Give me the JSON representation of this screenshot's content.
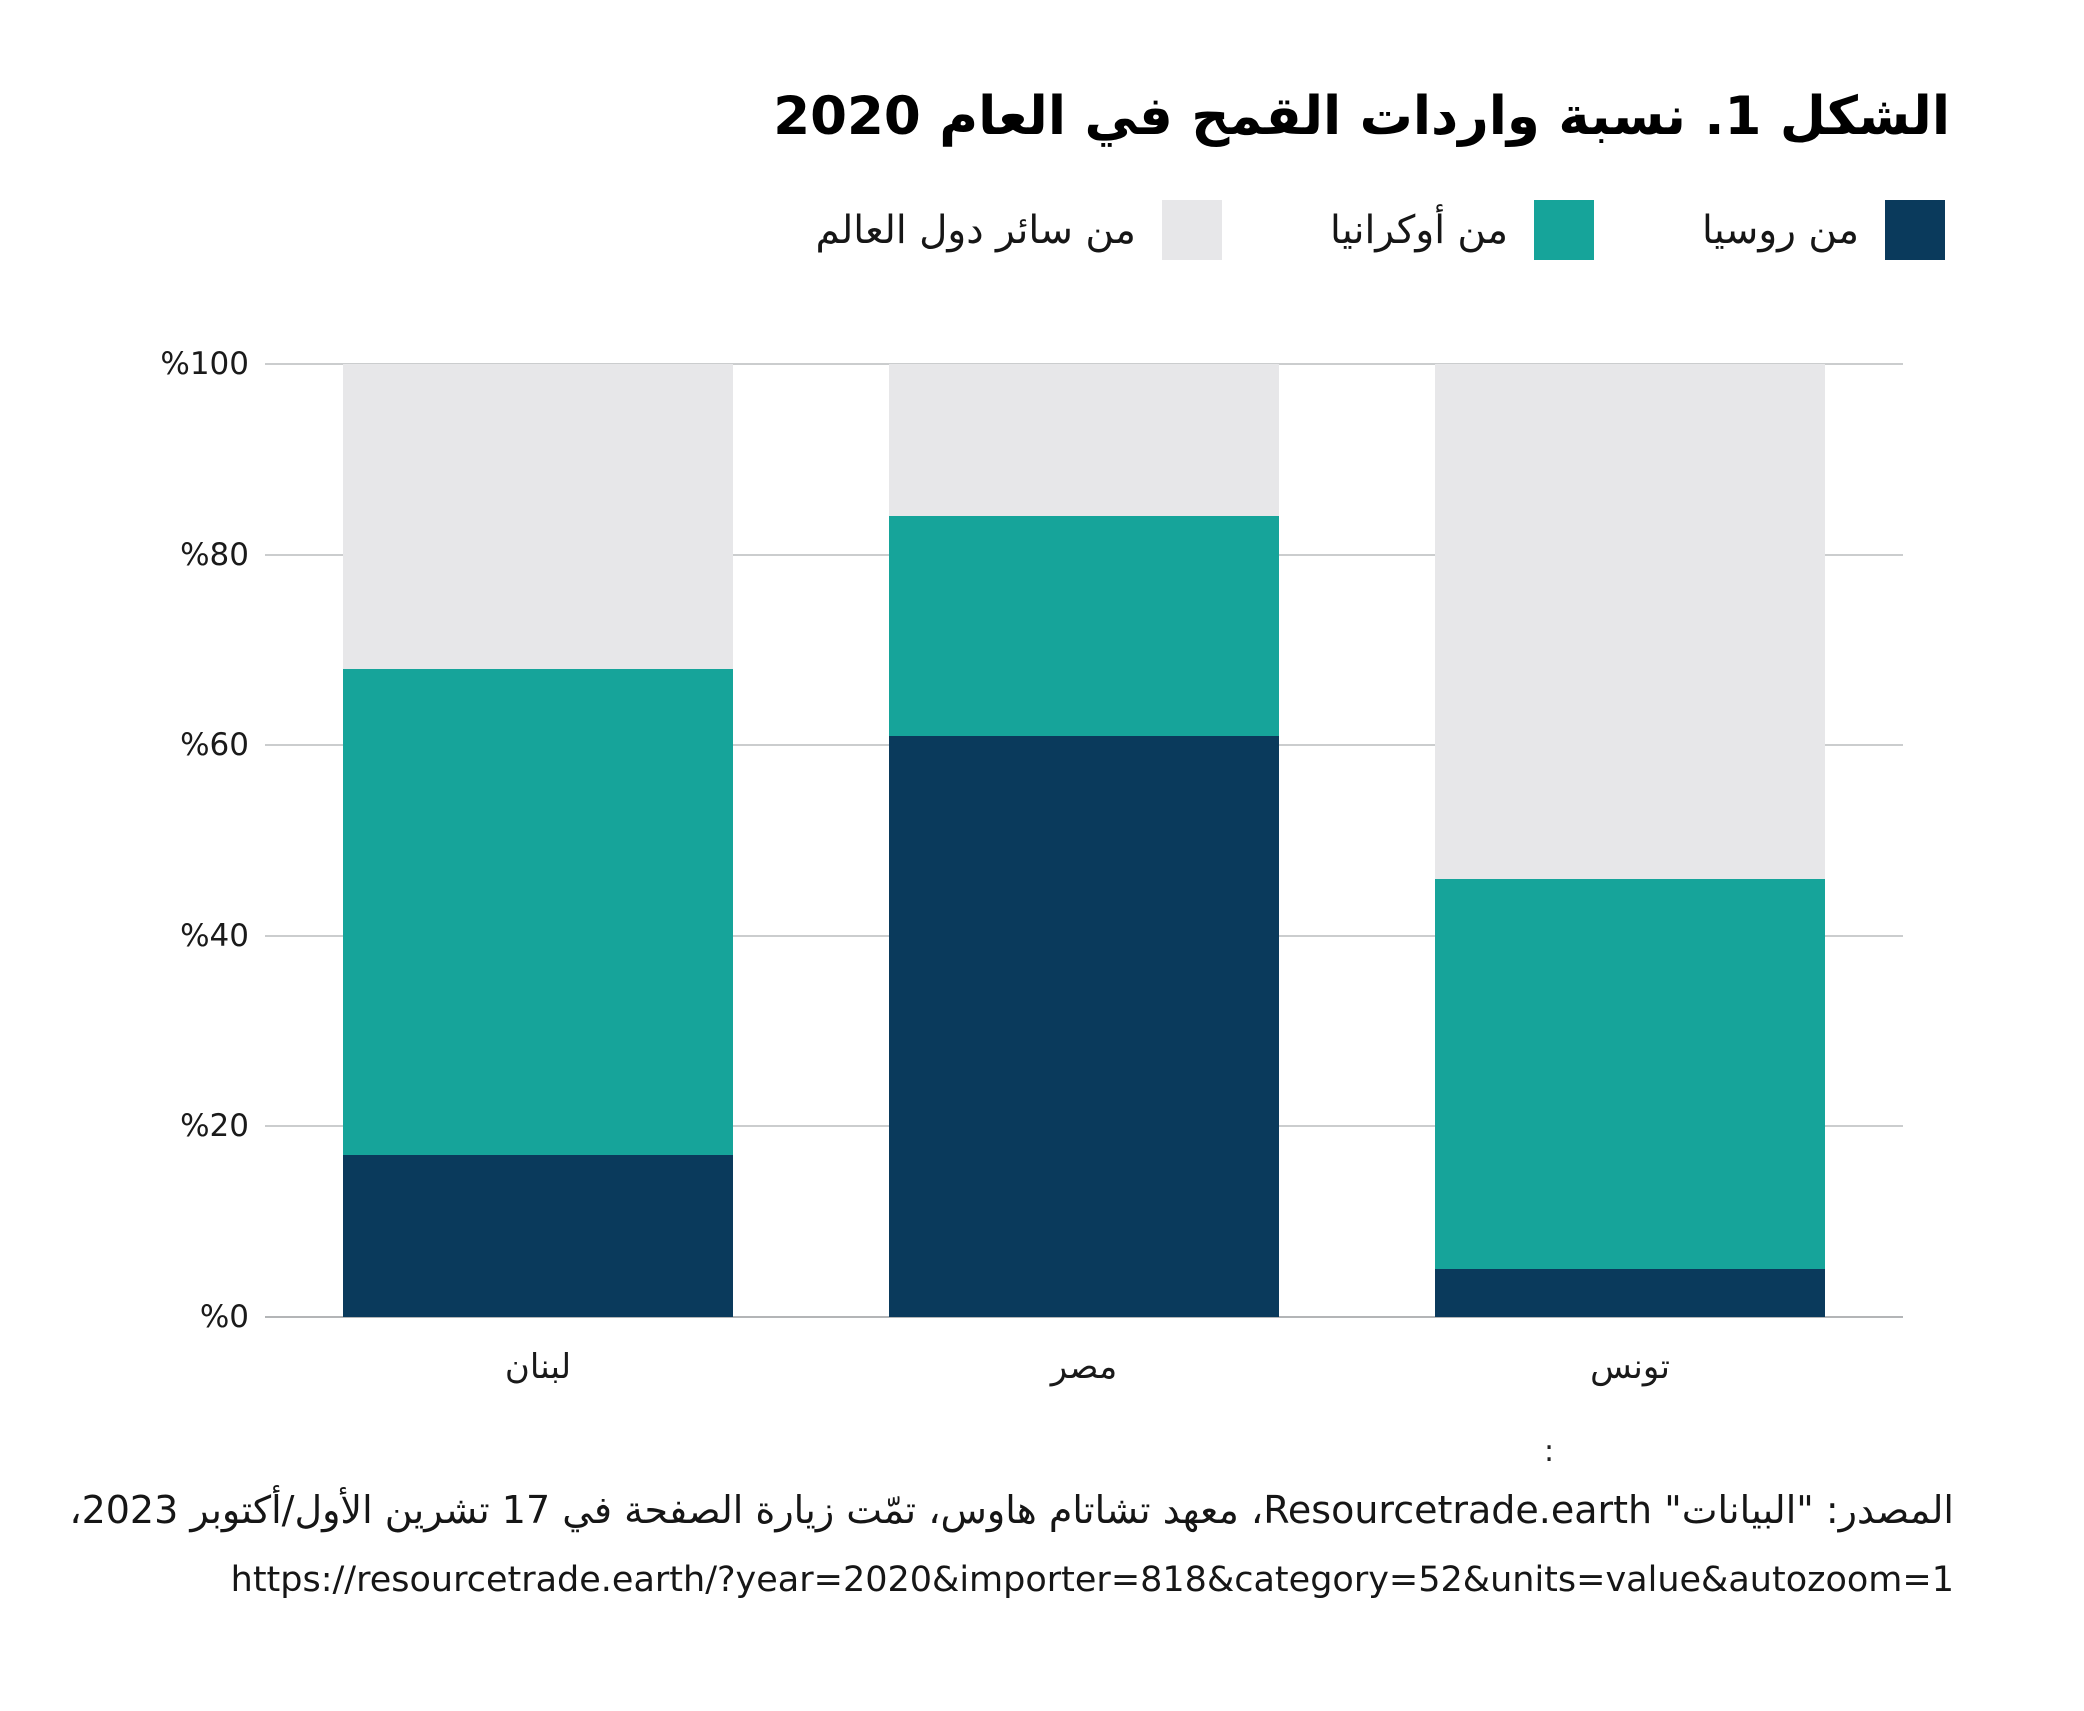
{
  "figure": {
    "title": "الشكل 1. نسبة واردات القمح في العام 2020"
  },
  "legend": {
    "items": [
      {
        "key": "russia",
        "label": "من روسيا",
        "color": "#0a3a5c"
      },
      {
        "key": "ukraine",
        "label": "من أوكرانيا",
        "color": "#16a49a"
      },
      {
        "key": "world",
        "label": "من سائر دول العالم",
        "color": "#e7e7e9"
      }
    ]
  },
  "chart_data": {
    "type": "bar",
    "stacked": true,
    "title": "الشكل 1. نسبة واردات القمح في العام 2020",
    "categories": [
      "لبنان",
      "مصر",
      "تونس"
    ],
    "category_keys": [
      "lebanon",
      "egypt",
      "tunisia"
    ],
    "series": [
      {
        "name": "من روسيا",
        "key": "russia",
        "color": "#0a3a5c",
        "values": [
          17,
          61,
          5
        ]
      },
      {
        "name": "من أوكرانيا",
        "key": "ukraine",
        "color": "#16a49a",
        "values": [
          51,
          23,
          41
        ]
      },
      {
        "name": "من سائر دول العالم",
        "key": "world",
        "color": "#e7e7e9",
        "values": [
          32,
          16,
          54
        ]
      }
    ],
    "xlabel": "",
    "ylabel": "",
    "ylim": [
      0,
      100
    ],
    "yticks": [
      0,
      20,
      40,
      60,
      80,
      100
    ],
    "ytick_labels": [
      "%0",
      "%20",
      "%40",
      "%60",
      "%80",
      "%100"
    ],
    "grid": true,
    "legend_position": "top"
  },
  "footer": {
    "colon": ":",
    "source": "المصدر: \"البيانات\" Resourcetrade.earth، معهد تشاتام هاوس، تمّت زيارة الصفحة في 17 تشرين الأول/أكتوبر 2023،",
    "url": "https://resourcetrade.earth/?year=2020&importer=818&category=52&units=value&autozoom=1"
  }
}
